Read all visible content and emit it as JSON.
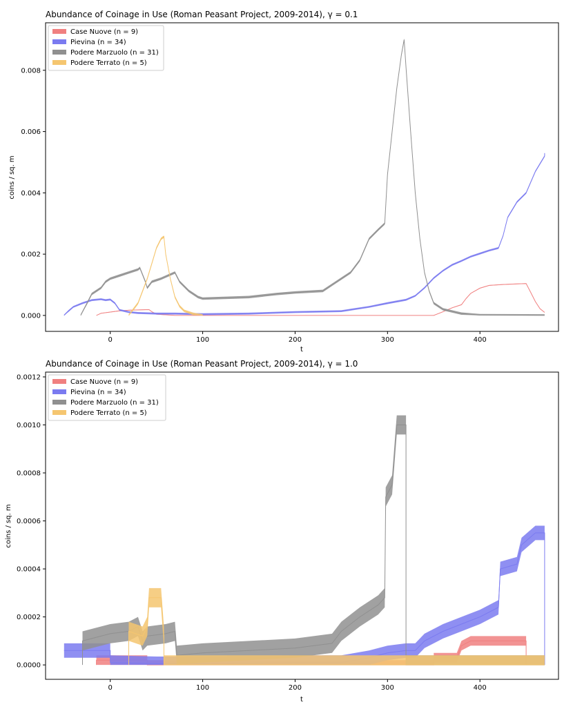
{
  "chart_data": [
    {
      "type": "area",
      "title": "Abundance of Coinage in Use (Roman Peasant Project, 2009-2014), γ = 0.1",
      "xlabel": "t",
      "ylabel": "coins / sq. m",
      "xlim": [
        -70,
        485
      ],
      "ylim": [
        -0.00052,
        0.00955
      ],
      "xticks": [
        0,
        100,
        200,
        300,
        400
      ],
      "xtick_labels": [
        "0",
        "100",
        "200",
        "300",
        "400"
      ],
      "yticks": [
        0,
        0.002,
        0.004,
        0.006,
        0.008
      ],
      "ytick_labels": [
        "0.000",
        "0.002",
        "0.004",
        "0.006",
        "0.008"
      ],
      "legend_position": "top-left",
      "series": [
        {
          "name": "Case Nuove (n = 9)",
          "color": "#f08080",
          "band": 1e-05,
          "points": [
            [
              -15,
              0
            ],
            [
              -10,
              7e-05
            ],
            [
              0,
              0.00011
            ],
            [
              10,
              0.00015
            ],
            [
              20,
              0.00017
            ],
            [
              30,
              0.00018
            ],
            [
              42,
              0.00019
            ],
            [
              45,
              0.00012
            ],
            [
              50,
              4e-05
            ],
            [
              60,
              2e-05
            ],
            [
              70,
              0
            ],
            [
              350,
              0
            ],
            [
              360,
              0.00012
            ],
            [
              370,
              0.00025
            ],
            [
              380,
              0.00035
            ],
            [
              385,
              0.00055
            ],
            [
              390,
              0.00072
            ],
            [
              400,
              0.00089
            ],
            [
              410,
              0.00098
            ],
            [
              425,
              0.00101
            ],
            [
              440,
              0.00103
            ],
            [
              450,
              0.00104
            ],
            [
              455,
              0.00075
            ],
            [
              460,
              0.00045
            ],
            [
              465,
              0.00022
            ],
            [
              470,
              0.0001
            ]
          ]
        },
        {
          "name": "Pievina (n = 34)",
          "color": "#7b7bf0",
          "band": 3e-05,
          "points": [
            [
              -50,
              0
            ],
            [
              -45,
              0.00015
            ],
            [
              -40,
              0.00028
            ],
            [
              -30,
              0.0004
            ],
            [
              -20,
              0.0005
            ],
            [
              -10,
              0.00053
            ],
            [
              -5,
              0.0005
            ],
            [
              0,
              0.00052
            ],
            [
              5,
              0.0004
            ],
            [
              10,
              0.00018
            ],
            [
              20,
              0.00011
            ],
            [
              30,
              8e-05
            ],
            [
              50,
              6e-05
            ],
            [
              70,
              6e-05
            ],
            [
              100,
              4e-05
            ],
            [
              150,
              6e-05
            ],
            [
              200,
              0.00011
            ],
            [
              250,
              0.00014
            ],
            [
              280,
              0.00028
            ],
            [
              300,
              0.0004
            ],
            [
              320,
              0.00051
            ],
            [
              330,
              0.00064
            ],
            [
              340,
              0.0009
            ],
            [
              350,
              0.00122
            ],
            [
              360,
              0.00146
            ],
            [
              370,
              0.00165
            ],
            [
              380,
              0.00178
            ],
            [
              390,
              0.00192
            ],
            [
              400,
              0.00202
            ],
            [
              410,
              0.00212
            ],
            [
              420,
              0.0022
            ],
            [
              425,
              0.0026
            ],
            [
              430,
              0.0032
            ],
            [
              440,
              0.0037
            ],
            [
              450,
              0.004
            ],
            [
              460,
              0.0047
            ],
            [
              470,
              0.0052
            ],
            [
              470,
              0.0053
            ]
          ]
        },
        {
          "name": "Podere Marzuolo (n = 31)",
          "color": "#909090",
          "band": 4e-05,
          "points": [
            [
              -32,
              0
            ],
            [
              -25,
              0.0004
            ],
            [
              -20,
              0.0007
            ],
            [
              -10,
              0.0009
            ],
            [
              -5,
              0.0011
            ],
            [
              0,
              0.0012
            ],
            [
              10,
              0.0013
            ],
            [
              20,
              0.0014
            ],
            [
              30,
              0.0015
            ],
            [
              32,
              0.00155
            ],
            [
              38,
              0.0011
            ],
            [
              40,
              0.0009
            ],
            [
              45,
              0.0011
            ],
            [
              55,
              0.0012
            ],
            [
              70,
              0.0014
            ],
            [
              75,
              0.0011
            ],
            [
              85,
              0.0008
            ],
            [
              95,
              0.0006
            ],
            [
              100,
              0.00055
            ],
            [
              150,
              0.0006
            ],
            [
              180,
              0.0007
            ],
            [
              200,
              0.00075
            ],
            [
              230,
              0.0008
            ],
            [
              240,
              0.001
            ],
            [
              250,
              0.0012
            ],
            [
              260,
              0.0014
            ],
            [
              270,
              0.0018
            ],
            [
              280,
              0.0025
            ],
            [
              290,
              0.0028
            ],
            [
              297,
              0.003
            ],
            [
              300,
              0.0046
            ],
            [
              305,
              0.006
            ],
            [
              310,
              0.0074
            ],
            [
              315,
              0.0085
            ],
            [
              318,
              0.009
            ],
            [
              320,
              0.0081
            ],
            [
              325,
              0.006
            ],
            [
              330,
              0.004
            ],
            [
              335,
              0.0025
            ],
            [
              340,
              0.0014
            ],
            [
              345,
              0.0008
            ],
            [
              350,
              0.0004
            ],
            [
              360,
              0.0002
            ],
            [
              380,
              6e-05
            ],
            [
              400,
              1e-05
            ],
            [
              470,
              0
            ]
          ]
        },
        {
          "name": "Podere Terrato (n = 5)",
          "color": "#f5c670",
          "band": 4e-05,
          "points": [
            [
              20,
              0
            ],
            [
              25,
              0.0002
            ],
            [
              30,
              0.0004
            ],
            [
              35,
              0.0008
            ],
            [
              40,
              0.0012
            ],
            [
              45,
              0.0017
            ],
            [
              50,
              0.0022
            ],
            [
              55,
              0.0025
            ],
            [
              58,
              0.00257
            ],
            [
              60,
              0.002
            ],
            [
              65,
              0.0012
            ],
            [
              70,
              0.0006
            ],
            [
              75,
              0.0003
            ],
            [
              80,
              0.00015
            ],
            [
              90,
              5e-05
            ],
            [
              100,
              0
            ]
          ]
        }
      ]
    },
    {
      "type": "area",
      "title": "Abundance of Coinage in Use (Roman Peasant Project, 2009-2014), γ = 1.0",
      "xlabel": "t",
      "ylabel": "coins / sq. m",
      "xlim": [
        -70,
        485
      ],
      "ylim": [
        -6e-05,
        0.00122
      ],
      "xticks": [
        0,
        100,
        200,
        300,
        400
      ],
      "xtick_labels": [
        "0",
        "100",
        "200",
        "300",
        "400"
      ],
      "yticks": [
        0,
        0.0002,
        0.0004,
        0.0006,
        0.0008,
        0.001,
        0.0012
      ],
      "ytick_labels": [
        "0.0000",
        "0.0002",
        "0.0004",
        "0.0006",
        "0.0008",
        "0.0010",
        "0.0012"
      ],
      "legend_position": "top-left",
      "series": [
        {
          "name": "Case Nuove (n = 9)",
          "color": "#f08080",
          "band": 2e-05,
          "points": [
            [
              -15,
              0
            ],
            [
              -15,
              2e-05
            ],
            [
              40,
              2e-05
            ],
            [
              40,
              0
            ],
            [
              350,
              0
            ],
            [
              350,
              3e-05
            ],
            [
              375,
              3e-05
            ],
            [
              380,
              8e-05
            ],
            [
              390,
              0.0001
            ],
            [
              420,
              0.0001
            ],
            [
              450,
              0.0001
            ],
            [
              450,
              0
            ]
          ]
        },
        {
          "name": "Pievina (n = 34)",
          "color": "#7b7bf0",
          "band": 3e-05,
          "points": [
            [
              -50,
              6e-05
            ],
            [
              -10,
              6e-05
            ],
            [
              0,
              6e-05
            ],
            [
              0,
              1e-05
            ],
            [
              50,
              5e-06
            ],
            [
              100,
              5e-06
            ],
            [
              200,
              1e-05
            ],
            [
              250,
              1e-05
            ],
            [
              280,
              3e-05
            ],
            [
              300,
              5e-05
            ],
            [
              320,
              6e-05
            ],
            [
              330,
              6e-05
            ],
            [
              340,
              0.0001
            ],
            [
              360,
              0.00014
            ],
            [
              380,
              0.00017
            ],
            [
              400,
              0.0002
            ],
            [
              420,
              0.00024
            ],
            [
              422,
              0.0004
            ],
            [
              440,
              0.00042
            ],
            [
              445,
              0.0005
            ],
            [
              460,
              0.00055
            ],
            [
              470,
              0.00055
            ],
            [
              470,
              0
            ]
          ]
        },
        {
          "name": "Podere Marzuolo (n = 31)",
          "color": "#909090",
          "band": 4e-05,
          "points": [
            [
              -30,
              0
            ],
            [
              -30,
              0.0001
            ],
            [
              0,
              0.00013
            ],
            [
              20,
              0.00014
            ],
            [
              30,
              0.00016
            ],
            [
              35,
              0.0001
            ],
            [
              40,
              0.00012
            ],
            [
              60,
              0.00013
            ],
            [
              70,
              0.00014
            ],
            [
              72,
              4e-05
            ],
            [
              100,
              5e-05
            ],
            [
              150,
              6e-05
            ],
            [
              200,
              7e-05
            ],
            [
              240,
              9e-05
            ],
            [
              250,
              0.00014
            ],
            [
              270,
              0.0002
            ],
            [
              290,
              0.00025
            ],
            [
              297,
              0.00028
            ],
            [
              298,
              0.0007
            ],
            [
              305,
              0.00075
            ],
            [
              310,
              0.001
            ],
            [
              320,
              0.001
            ],
            [
              320,
              0
            ],
            [
              470,
              0
            ]
          ]
        },
        {
          "name": "Podere Terrato (n = 5)",
          "color": "#f5c670",
          "band": 4e-05,
          "points": [
            [
              20,
              0
            ],
            [
              20,
              0.00014
            ],
            [
              35,
              0.00012
            ],
            [
              40,
              0.00016
            ],
            [
              42,
              0.00028
            ],
            [
              55,
              0.00028
            ],
            [
              58,
              0.00012
            ],
            [
              58,
              0
            ],
            [
              470,
              0
            ]
          ]
        }
      ]
    }
  ]
}
